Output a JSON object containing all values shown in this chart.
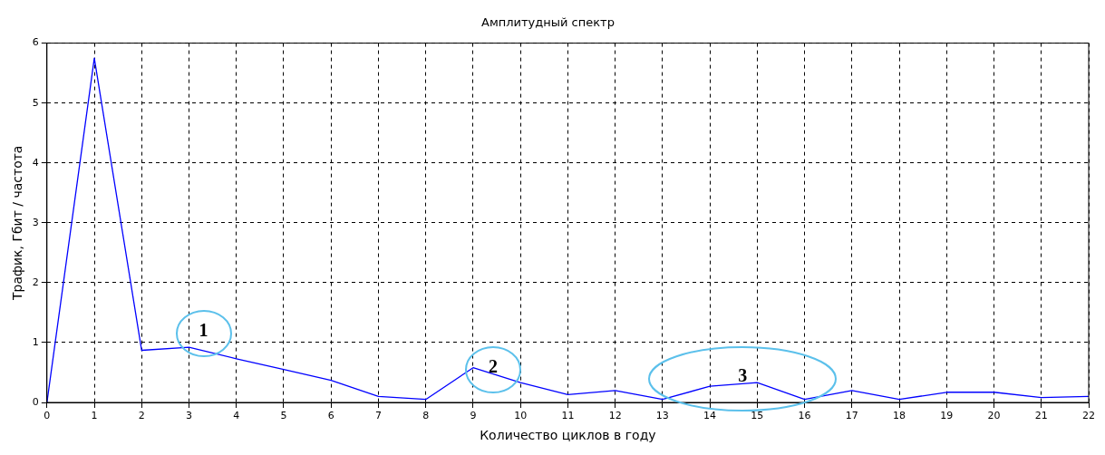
{
  "chart_data": {
    "type": "line",
    "title": "Амплитудный спектр",
    "xlabel": "Количество циклов в году",
    "ylabel": "Трафик, Гбит / частота",
    "x": [
      0,
      1,
      2,
      3,
      4,
      5,
      6,
      7,
      8,
      9,
      10,
      11,
      12,
      13,
      14,
      15,
      16,
      17,
      18,
      19,
      20,
      21,
      22
    ],
    "series": [
      {
        "color": "#0000ff",
        "values": [
          0,
          5.75,
          0.87,
          0.92,
          0.73,
          0.55,
          0.37,
          0.1,
          0.05,
          0.58,
          0.33,
          0.13,
          0.2,
          0.05,
          0.27,
          0.33,
          0.05,
          0.2,
          0.05,
          0.17,
          0.17,
          0.08,
          0.1
        ]
      }
    ],
    "xlim": [
      0,
      22
    ],
    "xticks": [
      0,
      1,
      2,
      3,
      4,
      5,
      6,
      7,
      8,
      9,
      10,
      11,
      12,
      13,
      14,
      15,
      16,
      17,
      18,
      19,
      20,
      21,
      22
    ],
    "ylim": [
      0,
      6
    ],
    "yticks": [
      0,
      1,
      2,
      3,
      4,
      5,
      6
    ],
    "grid": true,
    "legend": false,
    "marker": "none",
    "line_style": "solid",
    "annotations": [
      {
        "text": "1",
        "x": 3,
        "y": 0.92
      },
      {
        "text": "2",
        "x": 9,
        "y": 0.58
      },
      {
        "text": "3",
        "x": 15,
        "y": 0.33
      }
    ]
  }
}
